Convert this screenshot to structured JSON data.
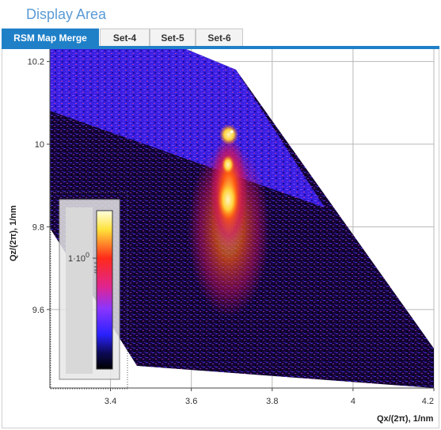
{
  "panel": {
    "title": "Display Area"
  },
  "tabs": [
    {
      "label": "RSM Map Merge",
      "active": true
    },
    {
      "label": "Set-4",
      "active": false
    },
    {
      "label": "Set-5",
      "active": false
    },
    {
      "label": "Set-6",
      "active": false
    }
  ],
  "colors": {
    "accent": "#1f80c8",
    "title": "#5b9bd5"
  },
  "chart_data": {
    "type": "heatmap",
    "xlabel": "Qx/(2π), 1/nm",
    "ylabel": "Qz/(2π), 1/nm",
    "xlim": [
      3.25,
      4.2
    ],
    "ylim": [
      9.41,
      10.23
    ],
    "x_ticks": [
      3.4,
      3.6,
      3.8,
      4.0,
      4.2
    ],
    "y_ticks": [
      9.6,
      9.8,
      10.0,
      10.2
    ],
    "x_tick_labels": [
      "3.4",
      "3.6",
      "3.8",
      "4",
      "4.2"
    ],
    "y_tick_labels": [
      "9.6",
      "9.8",
      "10",
      "10.2"
    ],
    "grid": true,
    "colorbar": {
      "label": "1·10",
      "exponent": "0",
      "placement": "bottom-left"
    },
    "peak": {
      "qx": 3.7,
      "qz": 10.03
    }
  }
}
